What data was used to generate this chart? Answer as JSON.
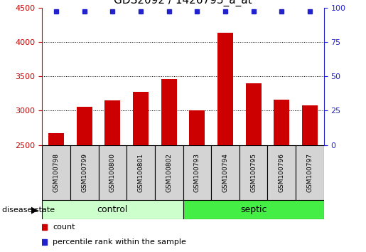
{
  "title": "GDS2092 / 1426793_a_at",
  "samples": [
    "GSM100798",
    "GSM100799",
    "GSM100800",
    "GSM100801",
    "GSM100802",
    "GSM100793",
    "GSM100794",
    "GSM100795",
    "GSM100796",
    "GSM100797"
  ],
  "counts": [
    2670,
    3060,
    3150,
    3275,
    3460,
    3000,
    4130,
    3400,
    3160,
    3080
  ],
  "percentiles": [
    100,
    100,
    100,
    100,
    100,
    100,
    100,
    100,
    100,
    100
  ],
  "baseline": 2500,
  "ylim_left": [
    2500,
    4500
  ],
  "ylim_right": [
    0,
    100
  ],
  "yticks_left": [
    2500,
    3000,
    3500,
    4000,
    4500
  ],
  "yticks_right": [
    0,
    25,
    50,
    75,
    100
  ],
  "bar_color": "#cc0000",
  "dot_color": "#2222cc",
  "control_label": "control",
  "septic_label": "septic",
  "group_label": "disease state",
  "legend_count": "count",
  "legend_percentile": "percentile rank within the sample",
  "sample_box_color": "#d4d4d4",
  "label_box_color_control": "#ccffcc",
  "label_box_color_septic": "#44ee44",
  "title_fontsize": 11,
  "tick_fontsize": 8,
  "sample_fontsize": 6.5,
  "group_fontsize": 9,
  "legend_fontsize": 8
}
